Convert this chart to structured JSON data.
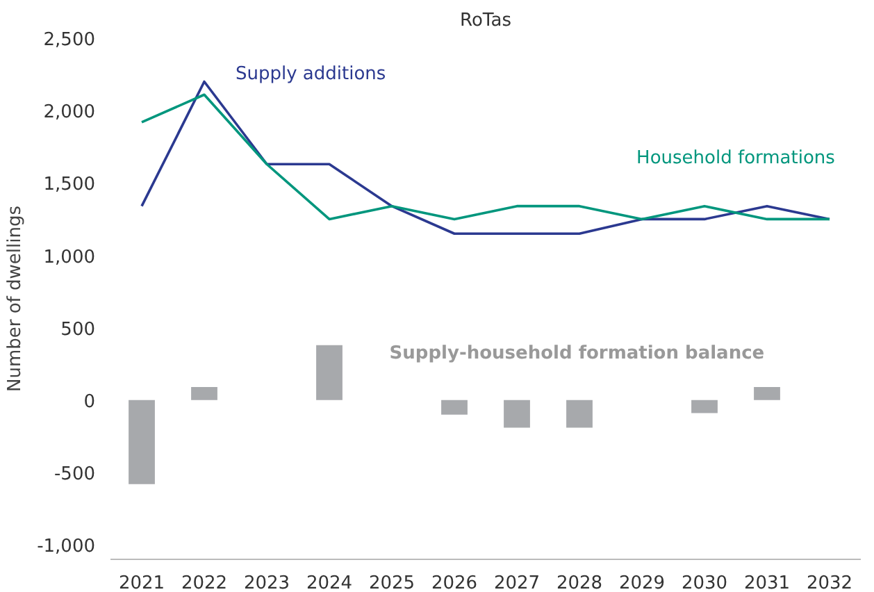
{
  "chart_data": {
    "type": "line",
    "title": "RoTas",
    "ylabel": "Number of dwellings",
    "categories": [
      "2021",
      "2022",
      "2023",
      "2024",
      "2025",
      "2026",
      "2027",
      "2028",
      "2029",
      "2030",
      "2031",
      "2032"
    ],
    "series": [
      {
        "name": "Supply additions",
        "color": "#2b3990",
        "values": [
          1340,
          2200,
          1630,
          1630,
          1340,
          1150,
          1150,
          1150,
          1250,
          1250,
          1340,
          1250
        ]
      },
      {
        "name": "Household formations",
        "color": "#00967d",
        "values": [
          1920,
          2110,
          1630,
          1250,
          1340,
          1250,
          1340,
          1340,
          1250,
          1340,
          1250,
          1250
        ]
      },
      {
        "name": "Supply-household formation balance",
        "type": "bar",
        "color": "#a7a9ac",
        "values": [
          -580,
          90,
          0,
          380,
          0,
          -100,
          -190,
          -190,
          0,
          -90,
          90,
          0
        ]
      }
    ],
    "ylim": [
      -1100,
      2500
    ],
    "yticks": [
      {
        "value": -1000,
        "label": "-1,000"
      },
      -500,
      0,
      500,
      {
        "value": 1000,
        "label": "1,000"
      },
      {
        "value": 1500,
        "label": "1,500"
      },
      {
        "value": 2000,
        "label": "2,000"
      },
      {
        "value": 2500,
        "label": "2,500"
      }
    ],
    "grid": false
  }
}
